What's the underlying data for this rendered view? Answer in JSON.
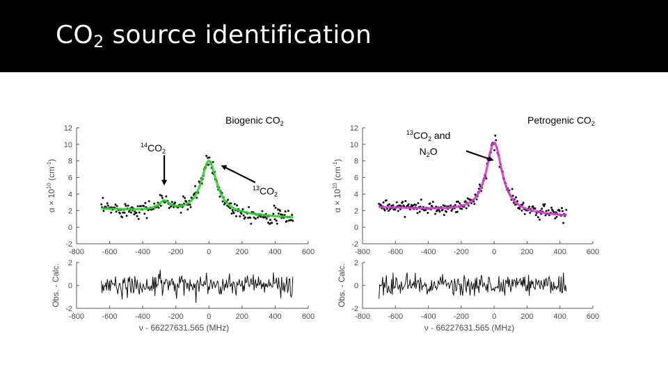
{
  "slide": {
    "title_main": "CO",
    "title_sub": "2",
    "title_rest": " source identification"
  },
  "labels": {
    "biogenic": {
      "text": "Biogenic CO",
      "sub": "2"
    },
    "c14": {
      "sup": "14",
      "text": "CO",
      "sub": "2"
    },
    "c13": {
      "sup": "13",
      "text": "CO",
      "sub": "2"
    },
    "c13_n2o": {
      "sup": "13",
      "text": "CO",
      "sub": "2",
      "tail": " and",
      "line2_text": "N",
      "line2_sub": "2",
      "line2_tail": "O"
    },
    "petrogenic": {
      "text": "Petrogenic CO",
      "sub": "2"
    }
  },
  "colors": {
    "biogenic_fit": "#2ad62a",
    "petrogenic_fit": "#d63cd6",
    "data_points": "#111111",
    "residual": "#111111",
    "axis": "#555555",
    "title_bar": "#000000"
  },
  "chart_data": [
    {
      "type": "scatter",
      "name": "biogenic",
      "title": "",
      "ylabel": "α × 10^10 (cm^-1)",
      "ylabel_parts": {
        "base": "α × 10",
        "exp1": "10",
        "unit": " (cm",
        "exp2": "-1",
        "close": ")"
      },
      "xlabel": "ν - 66227631.565 (MHz)",
      "xlim": [
        -800,
        600
      ],
      "ylim": [
        -2,
        12
      ],
      "xticks": [
        -800,
        -600,
        -400,
        -200,
        0,
        200,
        400,
        600
      ],
      "yticks": [
        -2,
        0,
        2,
        4,
        6,
        8,
        10,
        12
      ],
      "x_range": [
        -650,
        510
      ],
      "fit": {
        "baseline_start": 2.2,
        "baseline_end": 1.1,
        "main_center": 0,
        "main_amp": 6.4,
        "main_width": 58,
        "small_center": -270,
        "small_amp": 1.1,
        "small_width": 42,
        "color": "#2ad62a"
      },
      "noise_sd": 0.45,
      "arrows": [
        {
          "from": [
            -270,
            8.7
          ],
          "to": [
            -270,
            5.2
          ],
          "label": "14CO2"
        },
        {
          "from": [
            280,
            5.4
          ],
          "to": [
            80,
            7.4
          ],
          "label": "13CO2"
        }
      ],
      "residual": {
        "ylabel": "Obs. - Calc.",
        "ylim": [
          -2,
          2
        ],
        "yticks": [
          -2,
          0,
          2
        ],
        "sd": 0.45
      }
    },
    {
      "type": "scatter",
      "name": "petrogenic",
      "title": "",
      "ylabel": "α × 10^10 (cm^-1)",
      "ylabel_parts": {
        "base": "α × 10",
        "exp1": "10",
        "unit": " (cm",
        "exp2": "-1",
        "close": ")"
      },
      "xlabel": "ν - 66227631.565 (MHz)",
      "xlim": [
        -800,
        600
      ],
      "ylim": [
        -2,
        12
      ],
      "xticks": [
        -800,
        -600,
        -400,
        -200,
        0,
        200,
        400,
        600
      ],
      "yticks": [
        -2,
        0,
        2,
        4,
        6,
        8,
        10,
        12
      ],
      "x_range": [
        -700,
        440
      ],
      "fit": {
        "baseline_start": 2.4,
        "baseline_end": 1.3,
        "main_center": 0,
        "main_amp": 8.5,
        "main_width": 58,
        "small_center": -270,
        "small_amp": 0,
        "small_width": 42,
        "color": "#d63cd6"
      },
      "noise_sd": 0.4,
      "arrows": [
        {
          "from": [
            -170,
            9.2
          ],
          "to": [
            -10,
            8.1
          ],
          "label": "13CO2 and N2O"
        }
      ],
      "residual": {
        "ylabel": "Obs. - Calc.",
        "ylim": [
          -2,
          2
        ],
        "yticks": [
          -2,
          0,
          2
        ],
        "sd": 0.45
      }
    }
  ]
}
